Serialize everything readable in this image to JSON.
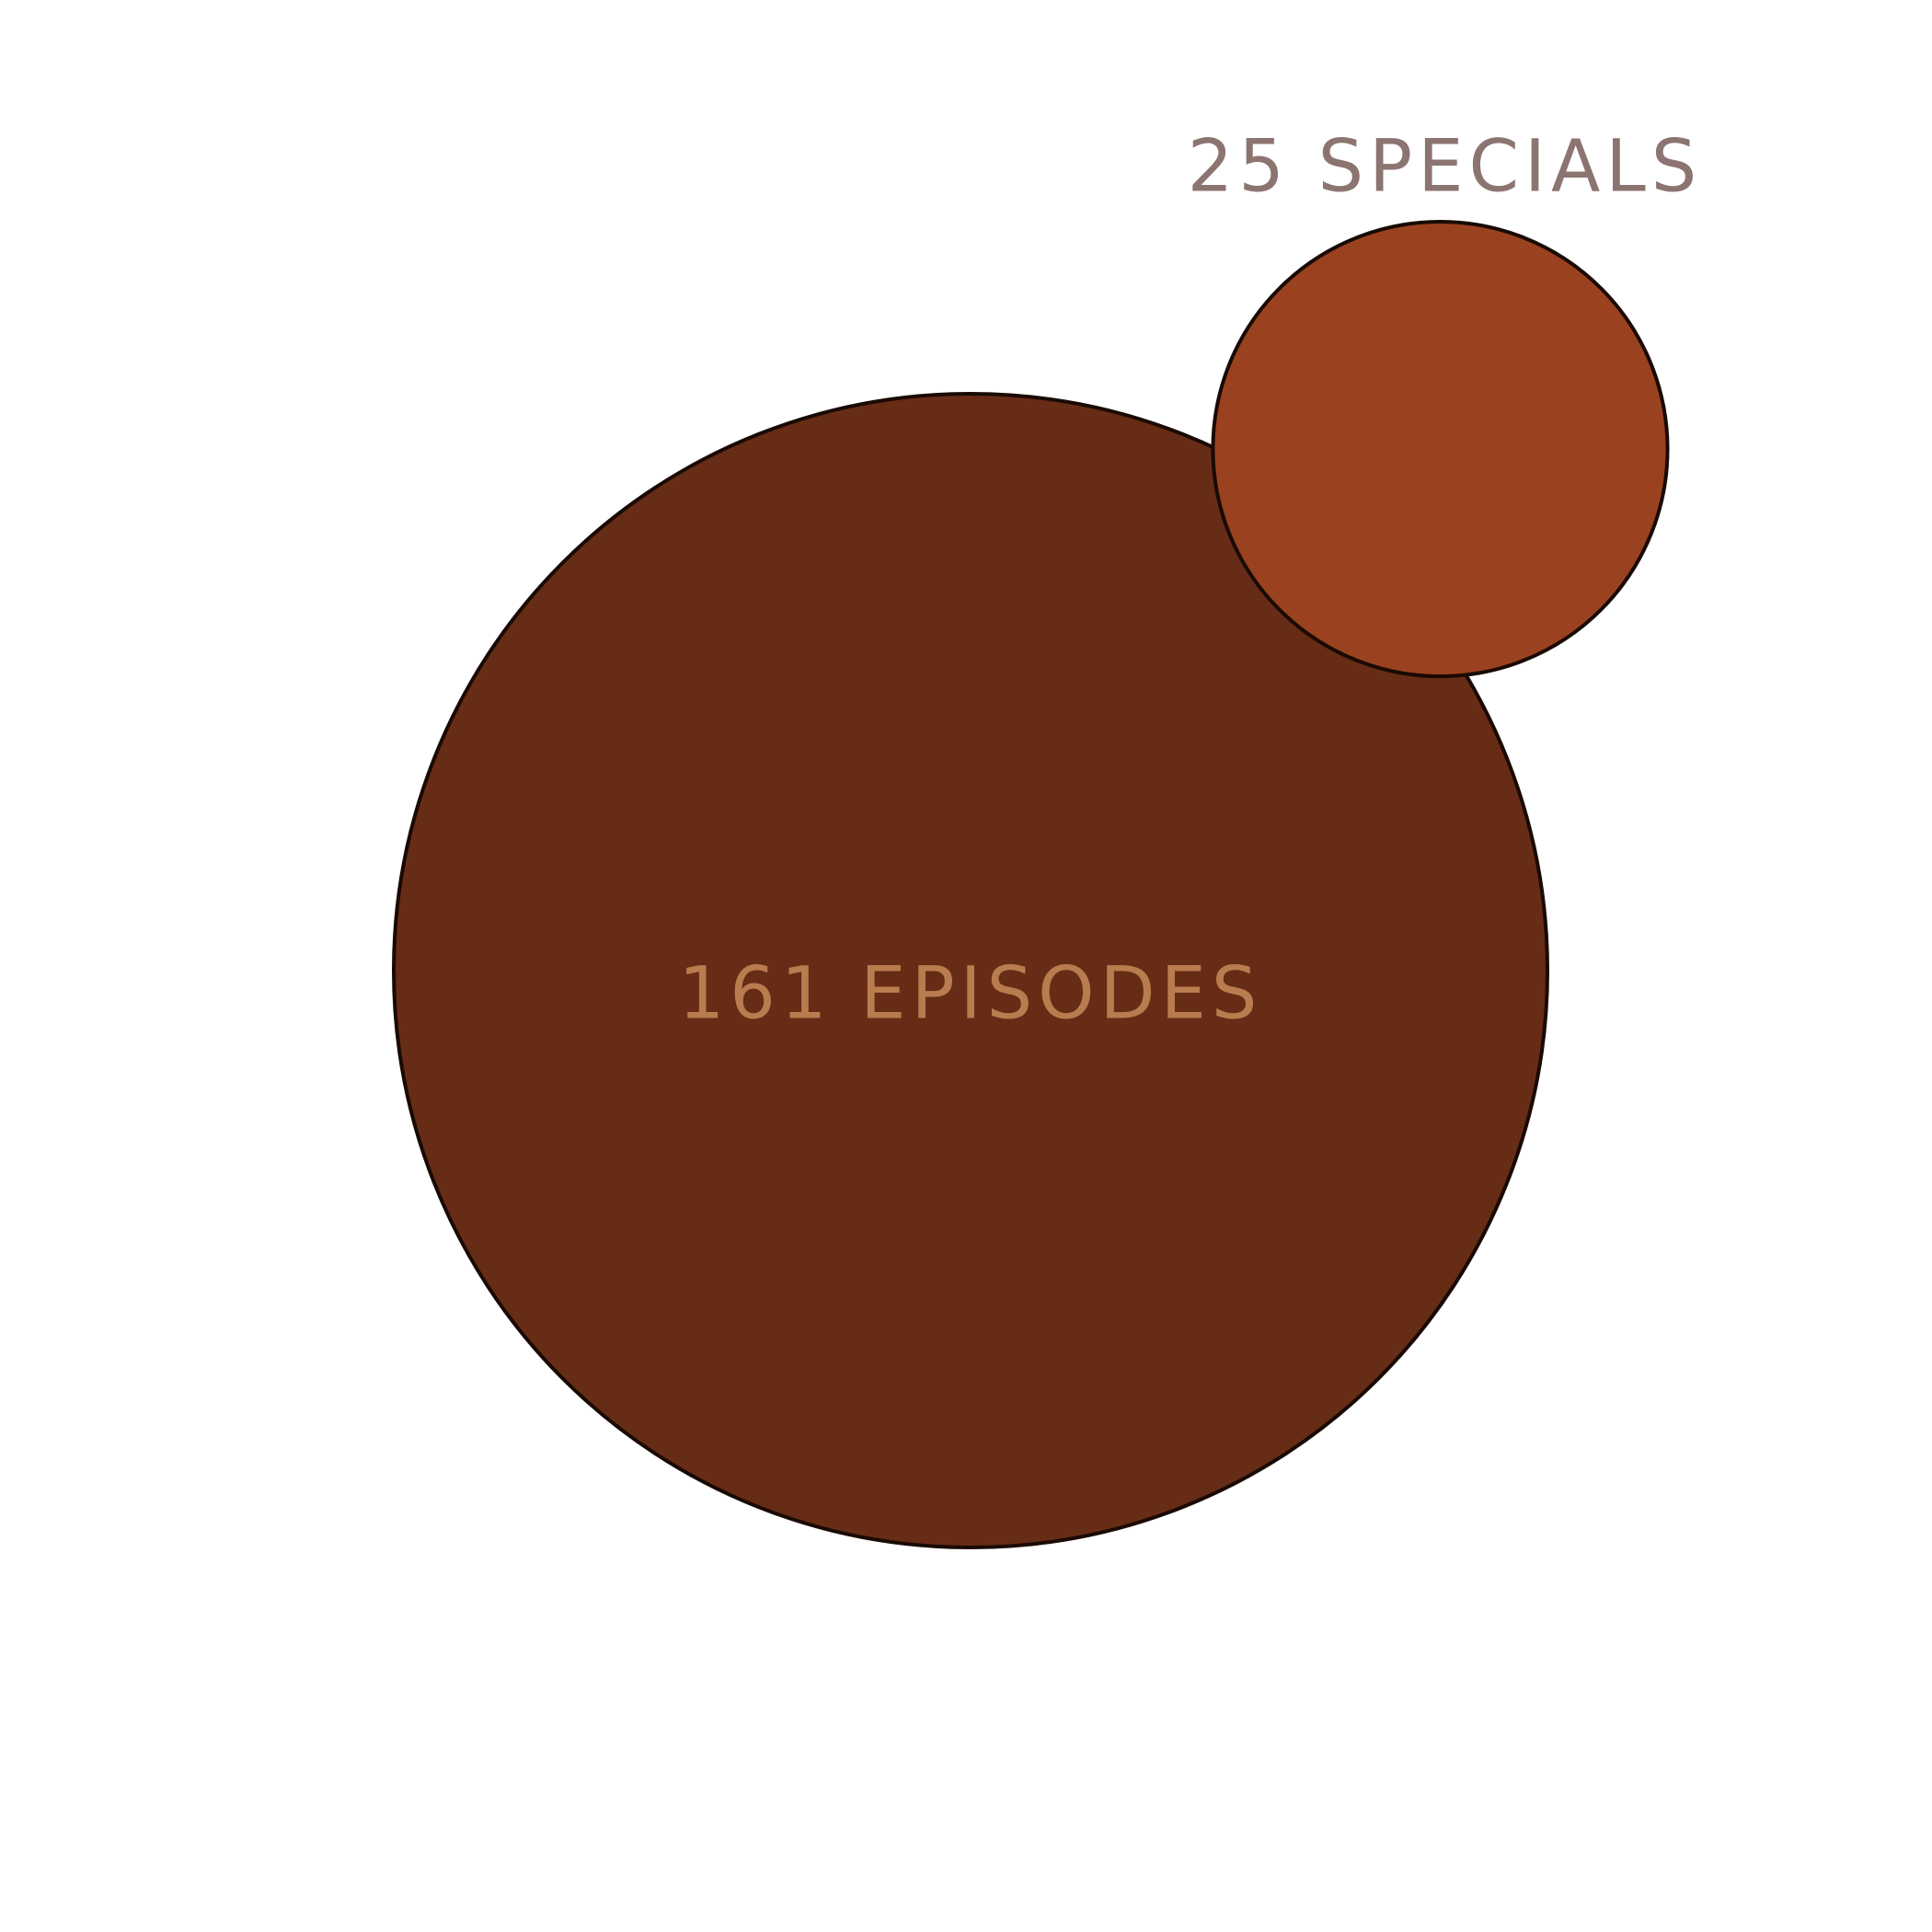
{
  "chart_data": {
    "type": "bubble",
    "title": "",
    "xlabel": "",
    "ylabel": "",
    "grid": false,
    "legend": "none",
    "items": [
      {
        "label": "161 EPISODES",
        "value": 161,
        "color": "#672c15",
        "label_color": "#b87c4f",
        "label_position": "inside"
      },
      {
        "label": "25 SPECIALS",
        "value": 25,
        "color": "#9a4220",
        "label_color": "#8c7470",
        "label_position": "above"
      }
    ]
  }
}
